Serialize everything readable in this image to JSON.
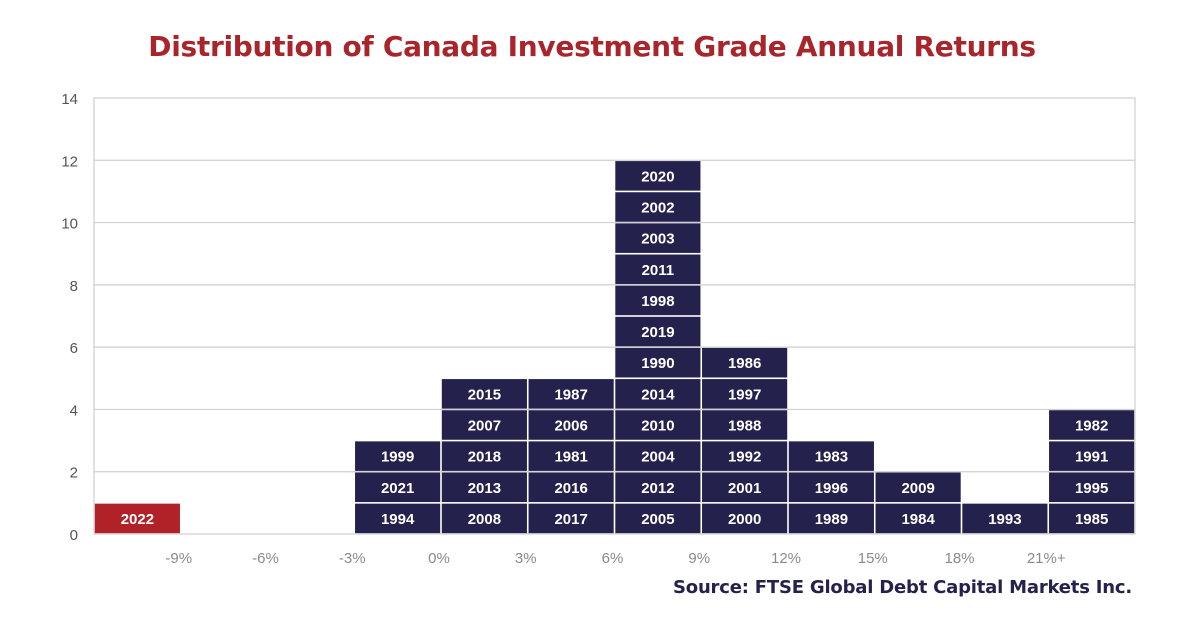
{
  "title": "Distribution of Canada Investment Grade Annual Returns",
  "source": "Source: FTSE Global Debt Capital Markets Inc.",
  "colors": {
    "title": "#a8262b",
    "bar": "#24214d",
    "highlight": "#b12128",
    "grid": "#cfcfcf",
    "axis_text": "#8a8a8a",
    "source_text": "#24214d",
    "cell_text": "#ffffff"
  },
  "chart_data": {
    "type": "bar",
    "title": "Distribution of Canada Investment Grade Annual Returns",
    "xlabel": "",
    "ylabel": "",
    "ylim": [
      0,
      14
    ],
    "yticks": [
      "0",
      "2",
      "4",
      "6",
      "8",
      "10",
      "12",
      "14"
    ],
    "xtick_labels": [
      "-9%",
      "-6%",
      "-3%",
      "0%",
      "3%",
      "6%",
      "9%",
      "12%",
      "15%",
      "18%",
      "21%+"
    ],
    "grid": true,
    "legend": "none",
    "highlight_year": "2022",
    "values": [
      1,
      0,
      0,
      3,
      5,
      5,
      12,
      6,
      3,
      2,
      1,
      4
    ],
    "bins": [
      {
        "years": [
          "2022"
        ]
      },
      {
        "years": []
      },
      {
        "years": []
      },
      {
        "years": [
          "1994",
          "2021",
          "1999"
        ]
      },
      {
        "years": [
          "2008",
          "2013",
          "2018",
          "2007",
          "2015"
        ]
      },
      {
        "years": [
          "2017",
          "2016",
          "1981",
          "2006",
          "1987"
        ]
      },
      {
        "years": [
          "2005",
          "2012",
          "2004",
          "2010",
          "2014",
          "1990",
          "2019",
          "1998",
          "2011",
          "2003",
          "2002",
          "2020"
        ]
      },
      {
        "years": [
          "2000",
          "2001",
          "1992",
          "1988",
          "1997",
          "1986"
        ]
      },
      {
        "years": [
          "1989",
          "1996",
          "1983"
        ]
      },
      {
        "years": [
          "1984",
          "2009"
        ]
      },
      {
        "years": [
          "1993"
        ]
      },
      {
        "years": [
          "1985",
          "1995",
          "1991",
          "1982"
        ]
      }
    ]
  }
}
